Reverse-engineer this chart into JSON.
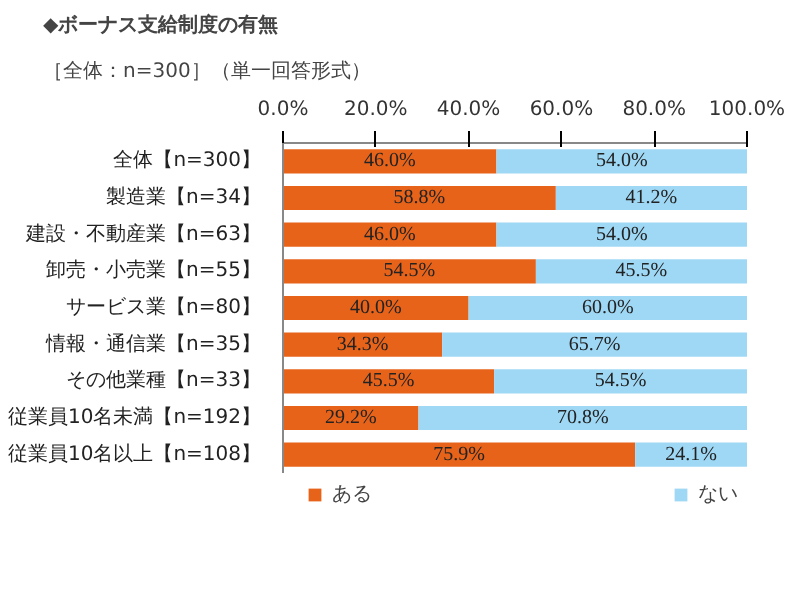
{
  "chart_data": {
    "type": "bar",
    "orientation": "horizontal",
    "stacked": true,
    "title": "◆ボーナス支給制度の有無",
    "subtitle": "［全体：n=300］（単一回答形式）",
    "categories": [
      "全体【n=300】",
      "製造業【n=34】",
      "建設・不動産業【n=63】",
      "卸売・小売業【n=55】",
      "サービス業【n=80】",
      "情報・通信業【n=35】",
      "その他業種【n=33】",
      "従業員10名未満【n=192】",
      "従業員10名以上【n=108】"
    ],
    "series": [
      {
        "name": "ある",
        "color": "#e8631a",
        "values": [
          46.0,
          58.8,
          46.0,
          54.5,
          40.0,
          34.3,
          45.5,
          29.2,
          75.9
        ],
        "value_labels": [
          "46.0%",
          "58.8%",
          "46.0%",
          "54.5%",
          "40.0%",
          "34.3%",
          "45.5%",
          "29.2%",
          "75.9%"
        ]
      },
      {
        "name": "ない",
        "color": "#9fd8f5",
        "values": [
          54.0,
          41.2,
          54.0,
          45.5,
          60.0,
          65.7,
          54.5,
          70.8,
          24.1
        ],
        "value_labels": [
          "54.0%",
          "41.2%",
          "54.0%",
          "45.5%",
          "60.0%",
          "65.7%",
          "54.5%",
          "70.8%",
          "24.1%"
        ]
      }
    ],
    "xlim": [
      0,
      100
    ],
    "xticks": [
      {
        "value": 0,
        "label": "0.0%"
      },
      {
        "value": 20,
        "label": "20.0%"
      },
      {
        "value": 40,
        "label": "40.0%"
      },
      {
        "value": 60,
        "label": "60.0%"
      },
      {
        "value": 80,
        "label": "80.0%"
      },
      {
        "value": 100,
        "label": "100.0%"
      }
    ],
    "legend": "bottom",
    "grid": false
  }
}
